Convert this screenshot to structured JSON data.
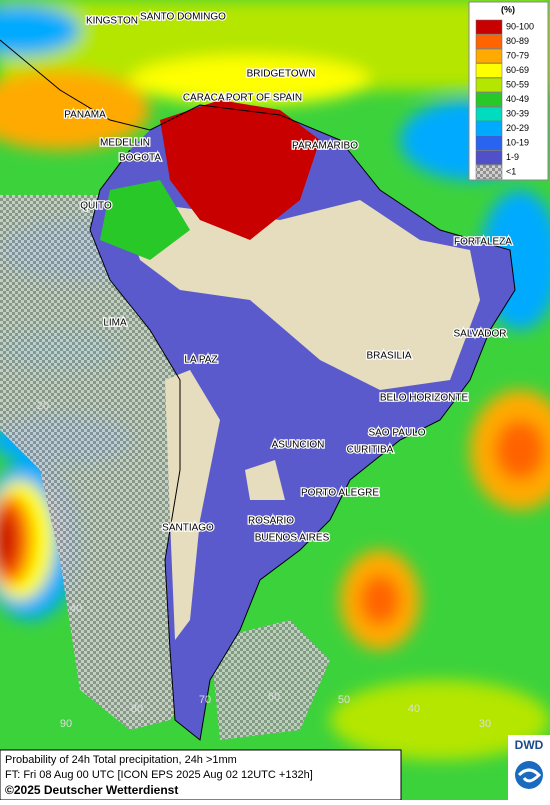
{
  "legend": {
    "title": "(%)",
    "items": [
      {
        "label": "90-100",
        "color": "#c80000"
      },
      {
        "label": "80-89",
        "color": "#ff6400"
      },
      {
        "label": "70-79",
        "color": "#ffaa00"
      },
      {
        "label": "60-69",
        "color": "#ffff00"
      },
      {
        "label": "50-59",
        "color": "#b4e600"
      },
      {
        "label": "40-49",
        "color": "#28c828"
      },
      {
        "label": "30-39",
        "color": "#00dcbe"
      },
      {
        "label": "20-29",
        "color": "#00aaff"
      },
      {
        "label": "10-19",
        "color": "#2864f0"
      },
      {
        "label": "1-9",
        "color": "#5050c8"
      },
      {
        "label": "<1",
        "color": "#a0a0a0"
      }
    ]
  },
  "cities": [
    "KINGSTON",
    "SANTO DOMINGO",
    "BRIDGETOWN",
    "CARACAS",
    "PORT OF SPAIN",
    "PANAMA",
    "MEDELLIN",
    "BOGOTA",
    "PARAMARIBO",
    "QUITO",
    "FORTALEZA",
    "LIMA",
    "SALVADOR",
    "LA PAZ",
    "BRASILIA",
    "BELO HORIZONTE",
    "SAO PAULO",
    "ASUNCION",
    "CURITIBA",
    "PORTO ALEGRE",
    "ROSARIO",
    "SANTIAGO",
    "BUENOS AIRES"
  ],
  "grid_labels": [
    "20",
    "40",
    "90",
    "80",
    "70",
    "60",
    "50",
    "40",
    "30"
  ],
  "footer": {
    "line1": "Probability of 24h Total precipitation, 24h >1mm",
    "line2": "FT: Fri 08 Aug 00 UTC [ICON EPS 2025 Aug 02 12UTC +132h]",
    "copyright": "©2025 Deutscher Wetterdienst"
  },
  "logo": "DWD"
}
